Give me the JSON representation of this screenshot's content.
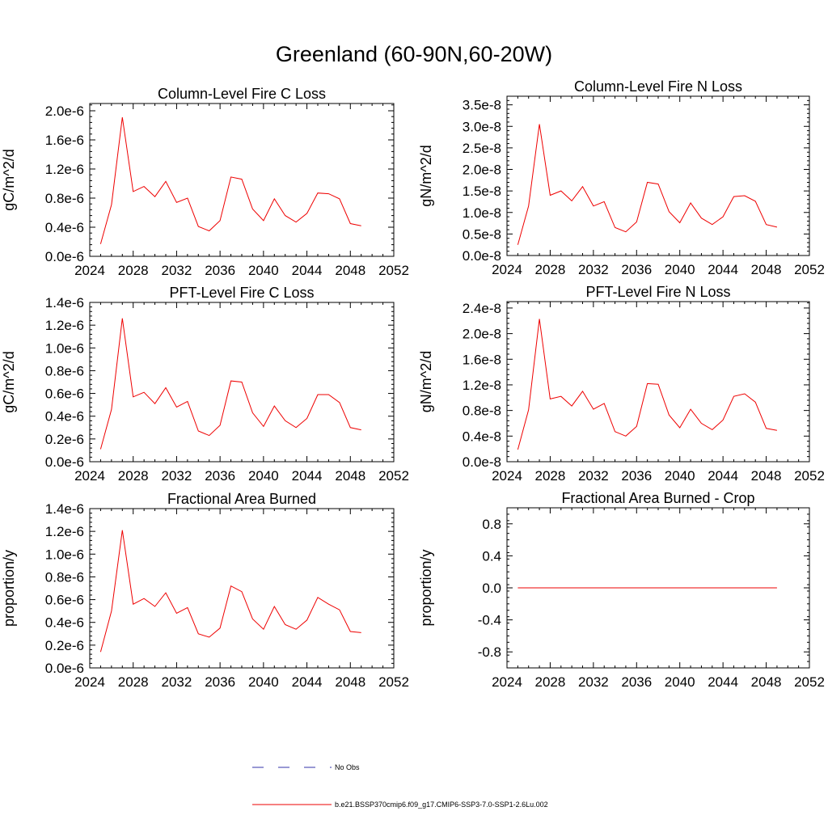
{
  "page": {
    "title": "Greenland (60-90N,60-20W)"
  },
  "legend": {
    "obs_label": "No Obs",
    "obs_color": "#3333aa",
    "model_label": "b.e21.BSSP370cmip6.f09_g17.CMIP6-SSP3-7.0-SSP1-2.6Lu.002",
    "model_color": "#ee0000"
  },
  "chart_data": [
    {
      "type": "line",
      "title": "Column-Level Fire C Loss",
      "ylabel": "gC/m^2/d",
      "xlim": [
        2024,
        2052
      ],
      "ylim": [
        0,
        2.1e-06
      ],
      "xticks": [
        2024,
        2028,
        2032,
        2036,
        2040,
        2044,
        2048,
        2052
      ],
      "xtick_labels": [
        "2024",
        "2028",
        "2032",
        "2036",
        "2040",
        "2044",
        "2048",
        "2052"
      ],
      "yticks": [
        0,
        4e-07,
        8e-07,
        1.2e-06,
        1.6e-06,
        2e-06
      ],
      "ytick_labels": [
        "0.0e-6",
        "0.4e-6",
        "0.8e-6",
        "1.2e-6",
        "1.6e-6",
        "2.0e-6"
      ],
      "series": [
        {
          "x": [
            2025,
            2026,
            2027,
            2028,
            2029,
            2030,
            2031,
            2032,
            2033,
            2034,
            2035,
            2036,
            2037,
            2038,
            2039,
            2040,
            2041,
            2042,
            2043,
            2044,
            2045,
            2046,
            2047,
            2048,
            2049
          ],
          "values": [
            1.7e-07,
            7.1e-07,
            1.91e-06,
            8.9e-07,
            9.6e-07,
            8.2e-07,
            1.03e-06,
            7.4e-07,
            8e-07,
            4.1e-07,
            3.5e-07,
            4.9e-07,
            1.09e-06,
            1.06e-06,
            6.5e-07,
            4.9e-07,
            7.9e-07,
            5.6e-07,
            4.7e-07,
            5.9e-07,
            8.7e-07,
            8.6e-07,
            7.9e-07,
            4.5e-07,
            4.2e-07
          ]
        }
      ]
    },
    {
      "type": "line",
      "title": "Column-Level Fire N Loss",
      "ylabel": "gN/m^2/d",
      "xlim": [
        2024,
        2052
      ],
      "ylim": [
        0,
        3.7e-08
      ],
      "xticks": [
        2024,
        2028,
        2032,
        2036,
        2040,
        2044,
        2048,
        2052
      ],
      "xtick_labels": [
        "2024",
        "2028",
        "2032",
        "2036",
        "2040",
        "2044",
        "2048",
        "2052"
      ],
      "yticks": [
        0,
        5e-09,
        1e-08,
        1.5e-08,
        2e-08,
        2.5e-08,
        3e-08,
        3.5e-08
      ],
      "ytick_labels": [
        "0.0e-8",
        "0.5e-8",
        "1.0e-8",
        "1.5e-8",
        "2.0e-8",
        "2.5e-8",
        "3.0e-8",
        "3.5e-8"
      ],
      "series": [
        {
          "x": [
            2025,
            2026,
            2027,
            2028,
            2029,
            2030,
            2031,
            2032,
            2033,
            2034,
            2035,
            2036,
            2037,
            2038,
            2039,
            2040,
            2041,
            2042,
            2043,
            2044,
            2045,
            2046,
            2047,
            2048,
            2049
          ],
          "values": [
            2.5e-09,
            1.15e-08,
            3.05e-08,
            1.4e-08,
            1.5e-08,
            1.27e-08,
            1.6e-08,
            1.15e-08,
            1.25e-08,
            6.5e-09,
            5.5e-09,
            7.8e-09,
            1.7e-08,
            1.66e-08,
            1.02e-08,
            7.6e-09,
            1.22e-08,
            8.7e-09,
            7.2e-09,
            9e-09,
            1.37e-08,
            1.39e-08,
            1.26e-08,
            7.2e-09,
            6.6e-09
          ]
        }
      ]
    },
    {
      "type": "line",
      "title": "PFT-Level Fire C Loss",
      "ylabel": "gC/m^2/d",
      "xlim": [
        2024,
        2052
      ],
      "ylim": [
        0,
        1.4e-06
      ],
      "xticks": [
        2024,
        2028,
        2032,
        2036,
        2040,
        2044,
        2048,
        2052
      ],
      "xtick_labels": [
        "2024",
        "2028",
        "2032",
        "2036",
        "2040",
        "2044",
        "2048",
        "2052"
      ],
      "yticks": [
        0,
        2e-07,
        4e-07,
        6e-07,
        8e-07,
        1e-06,
        1.2e-06,
        1.4e-06
      ],
      "ytick_labels": [
        "0.0e-6",
        "0.2e-6",
        "0.4e-6",
        "0.6e-6",
        "0.8e-6",
        "1.0e-6",
        "1.2e-6",
        "1.4e-6"
      ],
      "series": [
        {
          "x": [
            2025,
            2026,
            2027,
            2028,
            2029,
            2030,
            2031,
            2032,
            2033,
            2034,
            2035,
            2036,
            2037,
            2038,
            2039,
            2040,
            2041,
            2042,
            2043,
            2044,
            2045,
            2046,
            2047,
            2048,
            2049
          ],
          "values": [
            1.1e-07,
            4.6e-07,
            1.26e-06,
            5.7e-07,
            6.1e-07,
            5.1e-07,
            6.5e-07,
            4.8e-07,
            5.3e-07,
            2.7e-07,
            2.3e-07,
            3.2e-07,
            7.1e-07,
            7e-07,
            4.3e-07,
            3.1e-07,
            4.9e-07,
            3.6e-07,
            3e-07,
            3.8e-07,
            5.9e-07,
            5.9e-07,
            5.2e-07,
            3e-07,
            2.8e-07
          ]
        }
      ]
    },
    {
      "type": "line",
      "title": "PFT-Level Fire N Loss",
      "ylabel": "gN/m^2/d",
      "xlim": [
        2024,
        2052
      ],
      "ylim": [
        0,
        2.5e-08
      ],
      "xticks": [
        2024,
        2028,
        2032,
        2036,
        2040,
        2044,
        2048,
        2052
      ],
      "xtick_labels": [
        "2024",
        "2028",
        "2032",
        "2036",
        "2040",
        "2044",
        "2048",
        "2052"
      ],
      "yticks": [
        0,
        4e-09,
        8e-09,
        1.2e-08,
        1.6e-08,
        2e-08,
        2.4e-08
      ],
      "ytick_labels": [
        "0.0e-8",
        "0.4e-8",
        "0.8e-8",
        "1.2e-8",
        "1.6e-8",
        "2.0e-8",
        "2.4e-8"
      ],
      "series": [
        {
          "x": [
            2025,
            2026,
            2027,
            2028,
            2029,
            2030,
            2031,
            2032,
            2033,
            2034,
            2035,
            2036,
            2037,
            2038,
            2039,
            2040,
            2041,
            2042,
            2043,
            2044,
            2045,
            2046,
            2047,
            2048,
            2049
          ],
          "values": [
            1.9e-09,
            8.1e-09,
            2.23e-08,
            9.8e-09,
            1.02e-08,
            8.7e-09,
            1.1e-08,
            8.2e-09,
            9.1e-09,
            4.7e-09,
            4e-09,
            5.5e-09,
            1.22e-08,
            1.21e-08,
            7.3e-09,
            5.3e-09,
            8.2e-09,
            6e-09,
            5e-09,
            6.5e-09,
            1.02e-08,
            1.06e-08,
            9.3e-09,
            5.2e-09,
            4.9e-09
          ]
        }
      ]
    },
    {
      "type": "line",
      "title": "Fractional Area Burned",
      "ylabel": "proportion/y",
      "xlim": [
        2024,
        2052
      ],
      "ylim": [
        0,
        1.4e-06
      ],
      "xticks": [
        2024,
        2028,
        2032,
        2036,
        2040,
        2044,
        2048,
        2052
      ],
      "xtick_labels": [
        "2024",
        "2028",
        "2032",
        "2036",
        "2040",
        "2044",
        "2048",
        "2052"
      ],
      "yticks": [
        0,
        2e-07,
        4e-07,
        6e-07,
        8e-07,
        1e-06,
        1.2e-06,
        1.4e-06
      ],
      "ytick_labels": [
        "0.0e-6",
        "0.2e-6",
        "0.4e-6",
        "0.6e-6",
        "0.8e-6",
        "1.0e-6",
        "1.2e-6",
        "1.4e-6"
      ],
      "series": [
        {
          "x": [
            2025,
            2026,
            2027,
            2028,
            2029,
            2030,
            2031,
            2032,
            2033,
            2034,
            2035,
            2036,
            2037,
            2038,
            2039,
            2040,
            2041,
            2042,
            2043,
            2044,
            2045,
            2046,
            2047,
            2048,
            2049
          ],
          "values": [
            1.4e-07,
            5e-07,
            1.21e-06,
            5.6e-07,
            6.1e-07,
            5.4e-07,
            6.6e-07,
            4.8e-07,
            5.3e-07,
            3e-07,
            2.7e-07,
            3.5e-07,
            7.2e-07,
            6.7e-07,
            4.3e-07,
            3.4e-07,
            5.4e-07,
            3.8e-07,
            3.4e-07,
            4.2e-07,
            6.2e-07,
            5.6e-07,
            5.1e-07,
            3.2e-07,
            3.1e-07
          ]
        }
      ]
    },
    {
      "type": "line",
      "title": "Fractional Area Burned - Crop",
      "ylabel": "proportion/y",
      "xlim": [
        2024,
        2052
      ],
      "ylim": [
        -1,
        1
      ],
      "xticks": [
        2024,
        2028,
        2032,
        2036,
        2040,
        2044,
        2048,
        2052
      ],
      "xtick_labels": [
        "2024",
        "2028",
        "2032",
        "2036",
        "2040",
        "2044",
        "2048",
        "2052"
      ],
      "yticks": [
        -0.8,
        -0.4,
        0,
        0.4,
        0.8
      ],
      "ytick_labels": [
        "-0.8",
        "-0.4",
        "0.0",
        "0.4",
        "0.8"
      ],
      "series": [
        {
          "x": [
            2025,
            2026,
            2027,
            2028,
            2029,
            2030,
            2031,
            2032,
            2033,
            2034,
            2035,
            2036,
            2037,
            2038,
            2039,
            2040,
            2041,
            2042,
            2043,
            2044,
            2045,
            2046,
            2047,
            2048,
            2049
          ],
          "values": [
            0,
            0,
            0,
            0,
            0,
            0,
            0,
            0,
            0,
            0,
            0,
            0,
            0,
            0,
            0,
            0,
            0,
            0,
            0,
            0,
            0,
            0,
            0,
            0,
            0
          ]
        }
      ]
    }
  ]
}
